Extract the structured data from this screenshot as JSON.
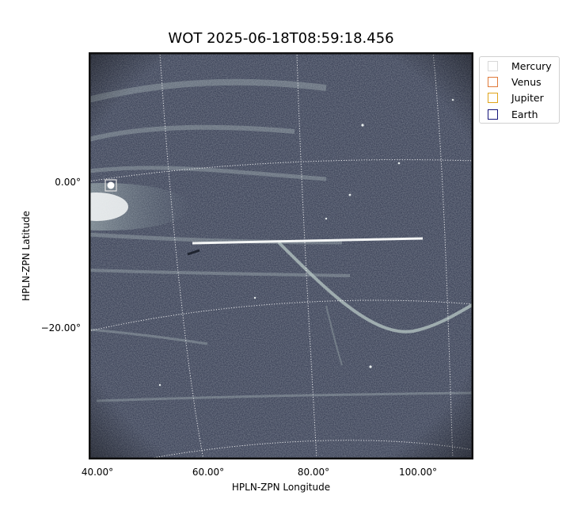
{
  "figure": {
    "title": "WOT 2025-06-18T08:59:18.456",
    "xlabel": "HPLN-ZPN Longitude",
    "ylabel": "HPLN-ZPN Latitude",
    "xticks": [
      "40.00°",
      "60.00°",
      "80.00°",
      "100.00°"
    ],
    "yticks": [
      "0.00°",
      "−20.00°"
    ]
  },
  "legend": {
    "items": [
      {
        "label": "Mercury",
        "color": "#d8d8d8"
      },
      {
        "label": "Venus",
        "color": "#e07a3a"
      },
      {
        "label": "Jupiter",
        "color": "#e0a41a"
      },
      {
        "label": "Earth",
        "color": "#15157a"
      }
    ]
  },
  "image": {
    "background_color": "#3c4358",
    "feature_color": "#c9d6d4"
  }
}
